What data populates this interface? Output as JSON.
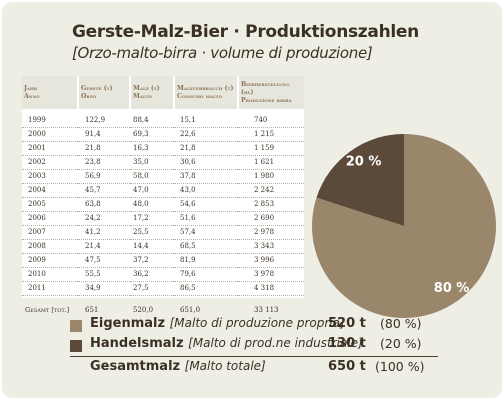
{
  "header": {
    "title": "Gerste-Malz-Bier · Produktionszahlen",
    "subtitle": "[Orzo-malto-birra · volume di produzione]"
  },
  "table": {
    "columns": [
      {
        "line1": "Jahr",
        "line2": "Anno"
      },
      {
        "line1": "Gerste (t)",
        "line2": "Orzo"
      },
      {
        "line1": "Malz (t)",
        "line2": "Malto"
      },
      {
        "line1": "Malzverbrauch (t)",
        "line2": "Consumo malto"
      },
      {
        "line1": "Bierherstellung (hl)",
        "line2": "Produzione birra"
      }
    ],
    "rows": [
      [
        "1999",
        "122,9",
        "88,4",
        "15,1",
        "740"
      ],
      [
        "2000",
        "91,4",
        "69,3",
        "22,6",
        "1 215"
      ],
      [
        "2001",
        "21,8",
        "16,3",
        "21,8",
        "1 159"
      ],
      [
        "2002",
        "23,8",
        "35,0",
        "30,6",
        "1 621"
      ],
      [
        "2003",
        "56,9",
        "58,0",
        "37,8",
        "1 980"
      ],
      [
        "2004",
        "45,7",
        "47,0",
        "43,0",
        "2 242"
      ],
      [
        "2005",
        "63,8",
        "48,0",
        "54,6",
        "2 853"
      ],
      [
        "2006",
        "24,2",
        "17,2",
        "51,6",
        "2 690"
      ],
      [
        "2007",
        "41,2",
        "25,5",
        "57,4",
        "2 978"
      ],
      [
        "2008",
        "21,4",
        "14,4",
        "68,5",
        "3 343"
      ],
      [
        "2009",
        "47,5",
        "37,2",
        "81,9",
        "3 996"
      ],
      [
        "2010",
        "55,5",
        "36,2",
        "79,6",
        "3 978"
      ],
      [
        "2011",
        "34,9",
        "27,5",
        "86,5",
        "4 318"
      ]
    ],
    "total": [
      "Gesamt [tot.]",
      "651",
      "520,0",
      "651,0",
      "33 113"
    ]
  },
  "chart_data": {
    "type": "pie",
    "slices": [
      {
        "label": "80 %",
        "value": 80,
        "color": "#9a866a"
      },
      {
        "label": "20 %",
        "value": 20,
        "color": "#5b4a3a"
      }
    ]
  },
  "legend": {
    "items": [
      {
        "name": "Eigenmalz",
        "sub": "[Malto di produzione propria]",
        "value": "520 t",
        "pct": "(80 %)",
        "color": "#9a866a"
      },
      {
        "name": "Handelsmalz",
        "sub": "[Malto di prod.ne industriale]",
        "value": "130 t",
        "pct": "(20 %)",
        "color": "#5b4a3a"
      }
    ],
    "total": {
      "name": "Gesamtmalz",
      "sub": "[Malto totale]",
      "value": "650 t",
      "pct": "(100 %)"
    }
  }
}
